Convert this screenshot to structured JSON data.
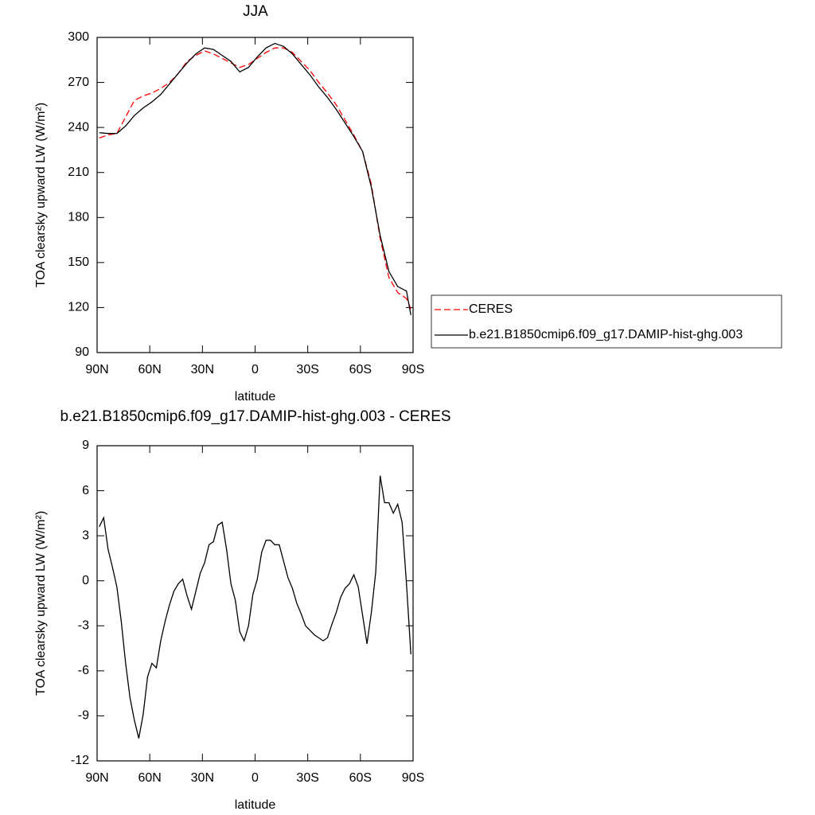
{
  "chart_data": [
    {
      "type": "line",
      "title": "JJA",
      "x_label": "latitude",
      "y_label": "TOA clearsky upward LW (W/m²)",
      "x": [
        88.75,
        83.75,
        78.75,
        73.75,
        68.75,
        63.75,
        58.75,
        53.75,
        48.75,
        43.75,
        38.75,
        33.75,
        28.75,
        23.75,
        18.75,
        13.75,
        8.75,
        3.75,
        -1.25,
        -6.25,
        -11.25,
        -16.25,
        -21.25,
        -26.25,
        -31.25,
        -36.25,
        -41.25,
        -46.25,
        -51.25,
        -56.25,
        -61.25,
        -66.25,
        -71.25,
        -76.25,
        -81.25,
        -86.25,
        -88.75
      ],
      "series": [
        {
          "name": "CERES",
          "color": "#ff0000",
          "linestyle": "dashed",
          "values": [
            233,
            235,
            236,
            247,
            258,
            261,
            263,
            266,
            270,
            276,
            284,
            288,
            291,
            289,
            286,
            283,
            280,
            282,
            286,
            290,
            293,
            293,
            290,
            284,
            278,
            270,
            263,
            255,
            245,
            235,
            224,
            202,
            166,
            140,
            130,
            126,
            119
          ]
        },
        {
          "name": "b.e21.B1850cmip6.f09_g17.DAMIP-hist-ghg.003",
          "color": "#000000",
          "linestyle": "solid",
          "values": [
            236.5,
            236,
            236,
            241,
            248,
            253,
            257,
            262,
            269,
            276,
            283,
            289,
            293,
            292,
            288,
            284,
            277,
            280,
            287,
            293,
            296,
            294,
            289,
            282,
            275,
            267,
            260,
            252,
            243,
            234,
            224,
            200,
            168,
            144,
            134,
            131,
            115
          ]
        }
      ],
      "xlim": [
        90,
        -90
      ],
      "xticks": [
        {
          "value": 90,
          "label": "90N"
        },
        {
          "value": 60,
          "label": "60N"
        },
        {
          "value": 30,
          "label": "30N"
        },
        0,
        {
          "value": -30,
          "label": "30S"
        },
        {
          "value": -60,
          "label": "60S"
        },
        {
          "value": -90,
          "label": "90S"
        }
      ],
      "ylim": [
        90,
        300
      ],
      "yticks": [
        90,
        120,
        150,
        180,
        210,
        240,
        270,
        300
      ],
      "grid": false,
      "legend": "right"
    },
    {
      "type": "line",
      "title": "b.e21.B1850cmip6.f09_g17.DAMIP-hist-ghg.003 - CERES",
      "x_label": "latitude",
      "y_label": "TOA clearsky upward LW (W/m²)",
      "x": [
        88.75,
        86.25,
        83.75,
        81.25,
        78.75,
        76.25,
        73.75,
        71.25,
        68.75,
        66.25,
        63.75,
        61.25,
        58.75,
        56.25,
        53.75,
        51.25,
        48.75,
        46.25,
        43.75,
        41.25,
        38.75,
        36.25,
        33.75,
        31.25,
        28.75,
        26.25,
        23.75,
        21.25,
        18.75,
        16.25,
        13.75,
        11.25,
        8.75,
        6.25,
        3.75,
        1.25,
        -1.25,
        -3.75,
        -6.25,
        -8.75,
        -11.25,
        -13.75,
        -16.25,
        -18.75,
        -21.25,
        -23.75,
        -26.25,
        -28.75,
        -31.25,
        -33.75,
        -36.25,
        -38.75,
        -41.25,
        -43.75,
        -46.25,
        -48.75,
        -51.25,
        -53.75,
        -56.25,
        -58.75,
        -61.25,
        -63.75,
        -66.25,
        -68.75,
        -71.25,
        -73.75,
        -76.25,
        -78.75,
        -81.25,
        -83.75,
        -86.25,
        -88.75
      ],
      "series": [
        {
          "color": "#000000",
          "linestyle": "solid",
          "values": [
            3.6,
            4.2,
            2.1,
            0.9,
            -0.4,
            -2.7,
            -5.5,
            -7.8,
            -9.3,
            -10.5,
            -8.9,
            -6.4,
            -5.5,
            -5.8,
            -4.0,
            -2.7,
            -1.6,
            -0.7,
            -0.2,
            0.1,
            -1.0,
            -1.9,
            -0.7,
            0.5,
            1.2,
            2.4,
            2.6,
            3.7,
            3.9,
            2.1,
            -0.2,
            -1.3,
            -3.4,
            -4.0,
            -3.0,
            -0.9,
            0.1,
            1.9,
            2.7,
            2.7,
            2.4,
            2.4,
            1.3,
            0.2,
            -0.5,
            -1.5,
            -2.2,
            -3.0,
            -3.3,
            -3.6,
            -3.8,
            -4.0,
            -3.8,
            -2.9,
            -2.1,
            -1.1,
            -0.5,
            -0.2,
            0.4,
            -0.4,
            -2.3,
            -4.2,
            -2.1,
            0.6,
            7.0,
            5.2,
            5.2,
            4.5,
            5.1,
            3.9,
            -0.2,
            -4.9
          ]
        }
      ],
      "xlim": [
        90,
        -90
      ],
      "xticks": [
        {
          "value": 90,
          "label": "90N"
        },
        {
          "value": 60,
          "label": "60N"
        },
        {
          "value": 30,
          "label": "30N"
        },
        0,
        {
          "value": -30,
          "label": "30S"
        },
        {
          "value": -60,
          "label": "60S"
        },
        {
          "value": -90,
          "label": "90S"
        }
      ],
      "ylim": [
        -12,
        9
      ],
      "yticks": [
        -12,
        -9,
        -6,
        -3,
        0,
        3,
        6,
        9
      ],
      "grid": false
    }
  ]
}
